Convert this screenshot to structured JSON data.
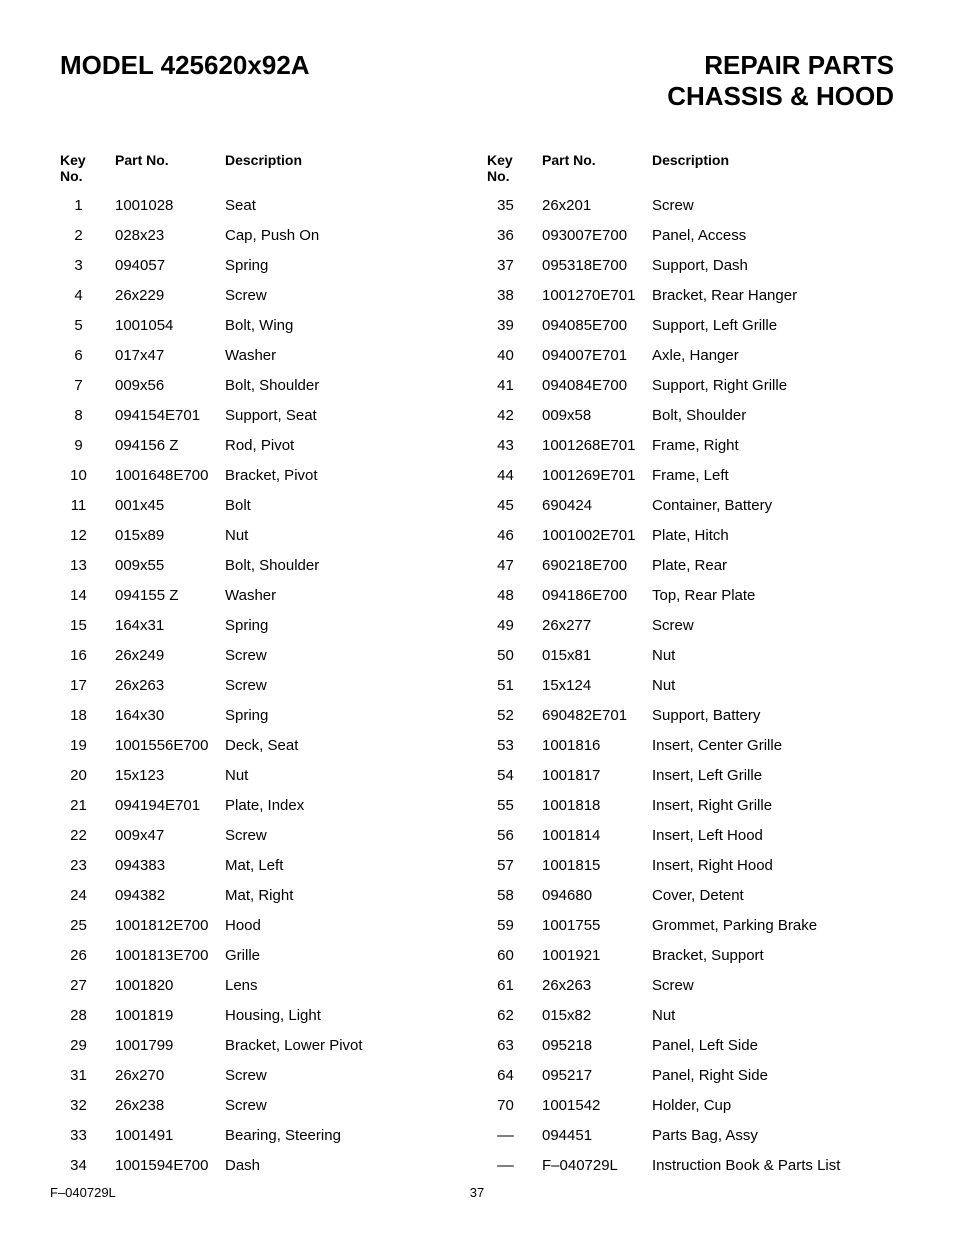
{
  "header": {
    "model_label": "MODEL 425620x92A",
    "title_line1": "REPAIR PARTS",
    "title_line2": "CHASSIS & HOOD"
  },
  "table_headers": {
    "key_no_line1": "Key",
    "key_no_line2": "No.",
    "part_no": "Part No.",
    "description": "Description"
  },
  "left_rows": [
    {
      "key": "1",
      "part": "1001028",
      "desc": "Seat"
    },
    {
      "key": "2",
      "part": "028x23",
      "desc": "Cap, Push On"
    },
    {
      "key": "3",
      "part": "094057",
      "desc": "Spring"
    },
    {
      "key": "4",
      "part": "26x229",
      "desc": "Screw"
    },
    {
      "key": "5",
      "part": "1001054",
      "desc": "Bolt, Wing"
    },
    {
      "key": "6",
      "part": "017x47",
      "desc": "Washer"
    },
    {
      "key": "7",
      "part": "009x56",
      "desc": "Bolt, Shoulder"
    },
    {
      "key": "8",
      "part": "094154E701",
      "desc": "Support, Seat"
    },
    {
      "key": "9",
      "part": "094156  Z",
      "desc": "Rod, Pivot"
    },
    {
      "key": "10",
      "part": "1001648E700",
      "desc": "Bracket, Pivot"
    },
    {
      "key": "11",
      "part": "001x45",
      "desc": "Bolt"
    },
    {
      "key": "12",
      "part": "015x89",
      "desc": "Nut"
    },
    {
      "key": "13",
      "part": "009x55",
      "desc": "Bolt, Shoulder"
    },
    {
      "key": "14",
      "part": "094155  Z",
      "desc": "Washer"
    },
    {
      "key": "15",
      "part": "164x31",
      "desc": "Spring"
    },
    {
      "key": "16",
      "part": "26x249",
      "desc": "Screw"
    },
    {
      "key": "17",
      "part": "26x263",
      "desc": "Screw"
    },
    {
      "key": "18",
      "part": "164x30",
      "desc": "Spring"
    },
    {
      "key": "19",
      "part": "1001556E700",
      "desc": "Deck, Seat"
    },
    {
      "key": "20",
      "part": "15x123",
      "desc": "Nut"
    },
    {
      "key": "21",
      "part": "094194E701",
      "desc": "Plate, Index"
    },
    {
      "key": "22",
      "part": "009x47",
      "desc": "Screw"
    },
    {
      "key": "23",
      "part": "094383",
      "desc": "Mat, Left"
    },
    {
      "key": "24",
      "part": "094382",
      "desc": "Mat, Right"
    },
    {
      "key": "25",
      "part": "1001812E700",
      "desc": "Hood"
    },
    {
      "key": "26",
      "part": "1001813E700",
      "desc": "Grille"
    },
    {
      "key": "27",
      "part": "1001820",
      "desc": "Lens"
    },
    {
      "key": "28",
      "part": "1001819",
      "desc": "Housing, Light"
    },
    {
      "key": "29",
      "part": "1001799",
      "desc": "Bracket, Lower Pivot"
    },
    {
      "key": "31",
      "part": "26x270",
      "desc": "Screw"
    },
    {
      "key": "32",
      "part": "26x238",
      "desc": "Screw"
    },
    {
      "key": "33",
      "part": "1001491",
      "desc": "Bearing, Steering"
    },
    {
      "key": "34",
      "part": "1001594E700",
      "desc": "Dash"
    }
  ],
  "right_rows": [
    {
      "key": "35",
      "part": "26x201",
      "desc": "Screw"
    },
    {
      "key": "36",
      "part": "093007E700",
      "desc": "Panel, Access"
    },
    {
      "key": "37",
      "part": "095318E700",
      "desc": "Support, Dash"
    },
    {
      "key": "38",
      "part": "1001270E701",
      "desc": "Bracket, Rear Hanger"
    },
    {
      "key": "39",
      "part": "094085E700",
      "desc": "Support, Left Grille"
    },
    {
      "key": "40",
      "part": "094007E701",
      "desc": "Axle, Hanger"
    },
    {
      "key": "41",
      "part": "094084E700",
      "desc": "Support, Right Grille"
    },
    {
      "key": "42",
      "part": "009x58",
      "desc": "Bolt, Shoulder"
    },
    {
      "key": "43",
      "part": "1001268E701",
      "desc": "Frame, Right"
    },
    {
      "key": "44",
      "part": "1001269E701",
      "desc": "Frame, Left"
    },
    {
      "key": "45",
      "part": "690424",
      "desc": "Container, Battery"
    },
    {
      "key": "46",
      "part": "1001002E701",
      "desc": "Plate, Hitch"
    },
    {
      "key": "47",
      "part": "690218E700",
      "desc": "Plate, Rear"
    },
    {
      "key": "48",
      "part": "094186E700",
      "desc": "Top, Rear Plate"
    },
    {
      "key": "49",
      "part": "26x277",
      "desc": "Screw"
    },
    {
      "key": "50",
      "part": "015x81",
      "desc": "Nut"
    },
    {
      "key": "51",
      "part": "15x124",
      "desc": "Nut"
    },
    {
      "key": "52",
      "part": "690482E701",
      "desc": "Support, Battery"
    },
    {
      "key": "53",
      "part": "1001816",
      "desc": "Insert, Center Grille"
    },
    {
      "key": "54",
      "part": "1001817",
      "desc": "Insert, Left Grille"
    },
    {
      "key": "55",
      "part": "1001818",
      "desc": "Insert, Right Grille"
    },
    {
      "key": "56",
      "part": "1001814",
      "desc": "Insert, Left Hood"
    },
    {
      "key": "57",
      "part": "1001815",
      "desc": "Insert, Right Hood"
    },
    {
      "key": "58",
      "part": "094680",
      "desc": "Cover, Detent"
    },
    {
      "key": "59",
      "part": "1001755",
      "desc": "Grommet, Parking Brake"
    },
    {
      "key": "60",
      "part": "1001921",
      "desc": "Bracket, Support"
    },
    {
      "key": "61",
      "part": "26x263",
      "desc": "Screw"
    },
    {
      "key": "62",
      "part": "015x82",
      "desc": "Nut"
    },
    {
      "key": "63",
      "part": "095218",
      "desc": "Panel, Left Side"
    },
    {
      "key": "64",
      "part": "095217",
      "desc": "Panel, Right Side"
    },
    {
      "key": "70",
      "part": "1001542",
      "desc": "Holder, Cup"
    },
    {
      "key": "––",
      "part": "094451",
      "desc": "Parts Bag, Assy"
    },
    {
      "key": "––",
      "part": "F–040729L",
      "desc": "Instruction Book & Parts List"
    }
  ],
  "footer": {
    "doc_id": "F–040729L",
    "page_number": "37"
  }
}
